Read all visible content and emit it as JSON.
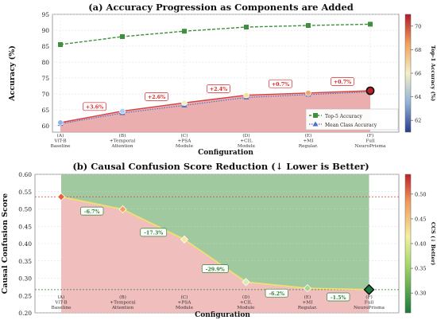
{
  "colors": {
    "top5": "#3f8f3f",
    "mca": "#4a6fc8",
    "top1_fill": "#e8a0a0",
    "ccs_above": "#e8a8a8",
    "ccs_below": "#8fc08f",
    "ref_line": "#d94040",
    "ann_red": "#d62728",
    "ann_green": "#2e7d32"
  },
  "chart_data": [
    {
      "type": "line",
      "title": "(a) Accuracy Progression as Components are Added",
      "xlabel": "Configuration",
      "ylabel": "Accuracy (%)",
      "ylim": [
        58,
        95
      ],
      "yticks": [
        60,
        65,
        70,
        75,
        80,
        85,
        90,
        95
      ],
      "grid": true,
      "legend_position": "lower-right",
      "categories": [
        [
          "(A)",
          "ViT-B",
          "Baseline"
        ],
        [
          "(B)",
          "+Temporal",
          "Attention"
        ],
        [
          "(C)",
          "+PSA",
          "Module"
        ],
        [
          "(D)",
          "+CIL",
          "Module"
        ],
        [
          "(E)",
          "+MI",
          "Regular."
        ],
        [
          "(F)",
          "Full",
          "NeuroPrisma"
        ]
      ],
      "series": [
        {
          "name": "Top-5 Accuracy",
          "marker": "square",
          "values": [
            85.5,
            88.0,
            89.7,
            91.0,
            91.5,
            91.9
          ]
        },
        {
          "name": "Mean Class Accuracy",
          "marker": "triangle",
          "values": [
            60.6,
            64.0,
            66.4,
            68.9,
            69.8,
            70.6
          ]
        },
        {
          "name": "Top-1 Accuracy",
          "values": [
            61.0,
            64.6,
            67.2,
            69.6,
            70.3,
            71.0
          ]
        }
      ],
      "improvements": [
        "+3.6%",
        "+2.6%",
        "+2.4%",
        "+0.7%",
        "+0.7%"
      ],
      "colorbar": {
        "label": "Top-1 Accuracy (%)",
        "range": [
          61,
          71
        ],
        "ticks": [
          62,
          64,
          66,
          68,
          70
        ]
      }
    },
    {
      "type": "line",
      "title": "(b) Causal Confusion Score Reduction (↓ Lower is Better)",
      "xlabel": "Configuration",
      "ylabel": "Causal Confusion Score",
      "ylim": [
        0.2,
        0.6
      ],
      "yticks": [
        0.2,
        0.25,
        0.3,
        0.35,
        0.4,
        0.45,
        0.5,
        0.55,
        0.6
      ],
      "grid": true,
      "categories": [
        [
          "(A)",
          "ViT-B",
          "Baseline"
        ],
        [
          "(B)",
          "+Temporal",
          "Attention"
        ],
        [
          "(C)",
          "+PSA",
          "Module"
        ],
        [
          "(D)",
          "+CIL",
          "Module"
        ],
        [
          "(E)",
          "+MI",
          "Regular."
        ],
        [
          "(F)",
          "Full",
          "NeuroPrisma"
        ]
      ],
      "values": [
        0.535,
        0.499,
        0.412,
        0.289,
        0.271,
        0.267
      ],
      "reference_lines": [
        0.535,
        0.267
      ],
      "reductions": [
        "-6.7%",
        "-17.3%",
        "-29.9%",
        "-6.2%",
        "-1.5%"
      ],
      "colorbar": {
        "label": "CCS (↓ Better)",
        "range": [
          0.26,
          0.54
        ],
        "ticks": [
          0.3,
          0.35,
          0.4,
          0.45,
          0.5
        ]
      }
    }
  ]
}
